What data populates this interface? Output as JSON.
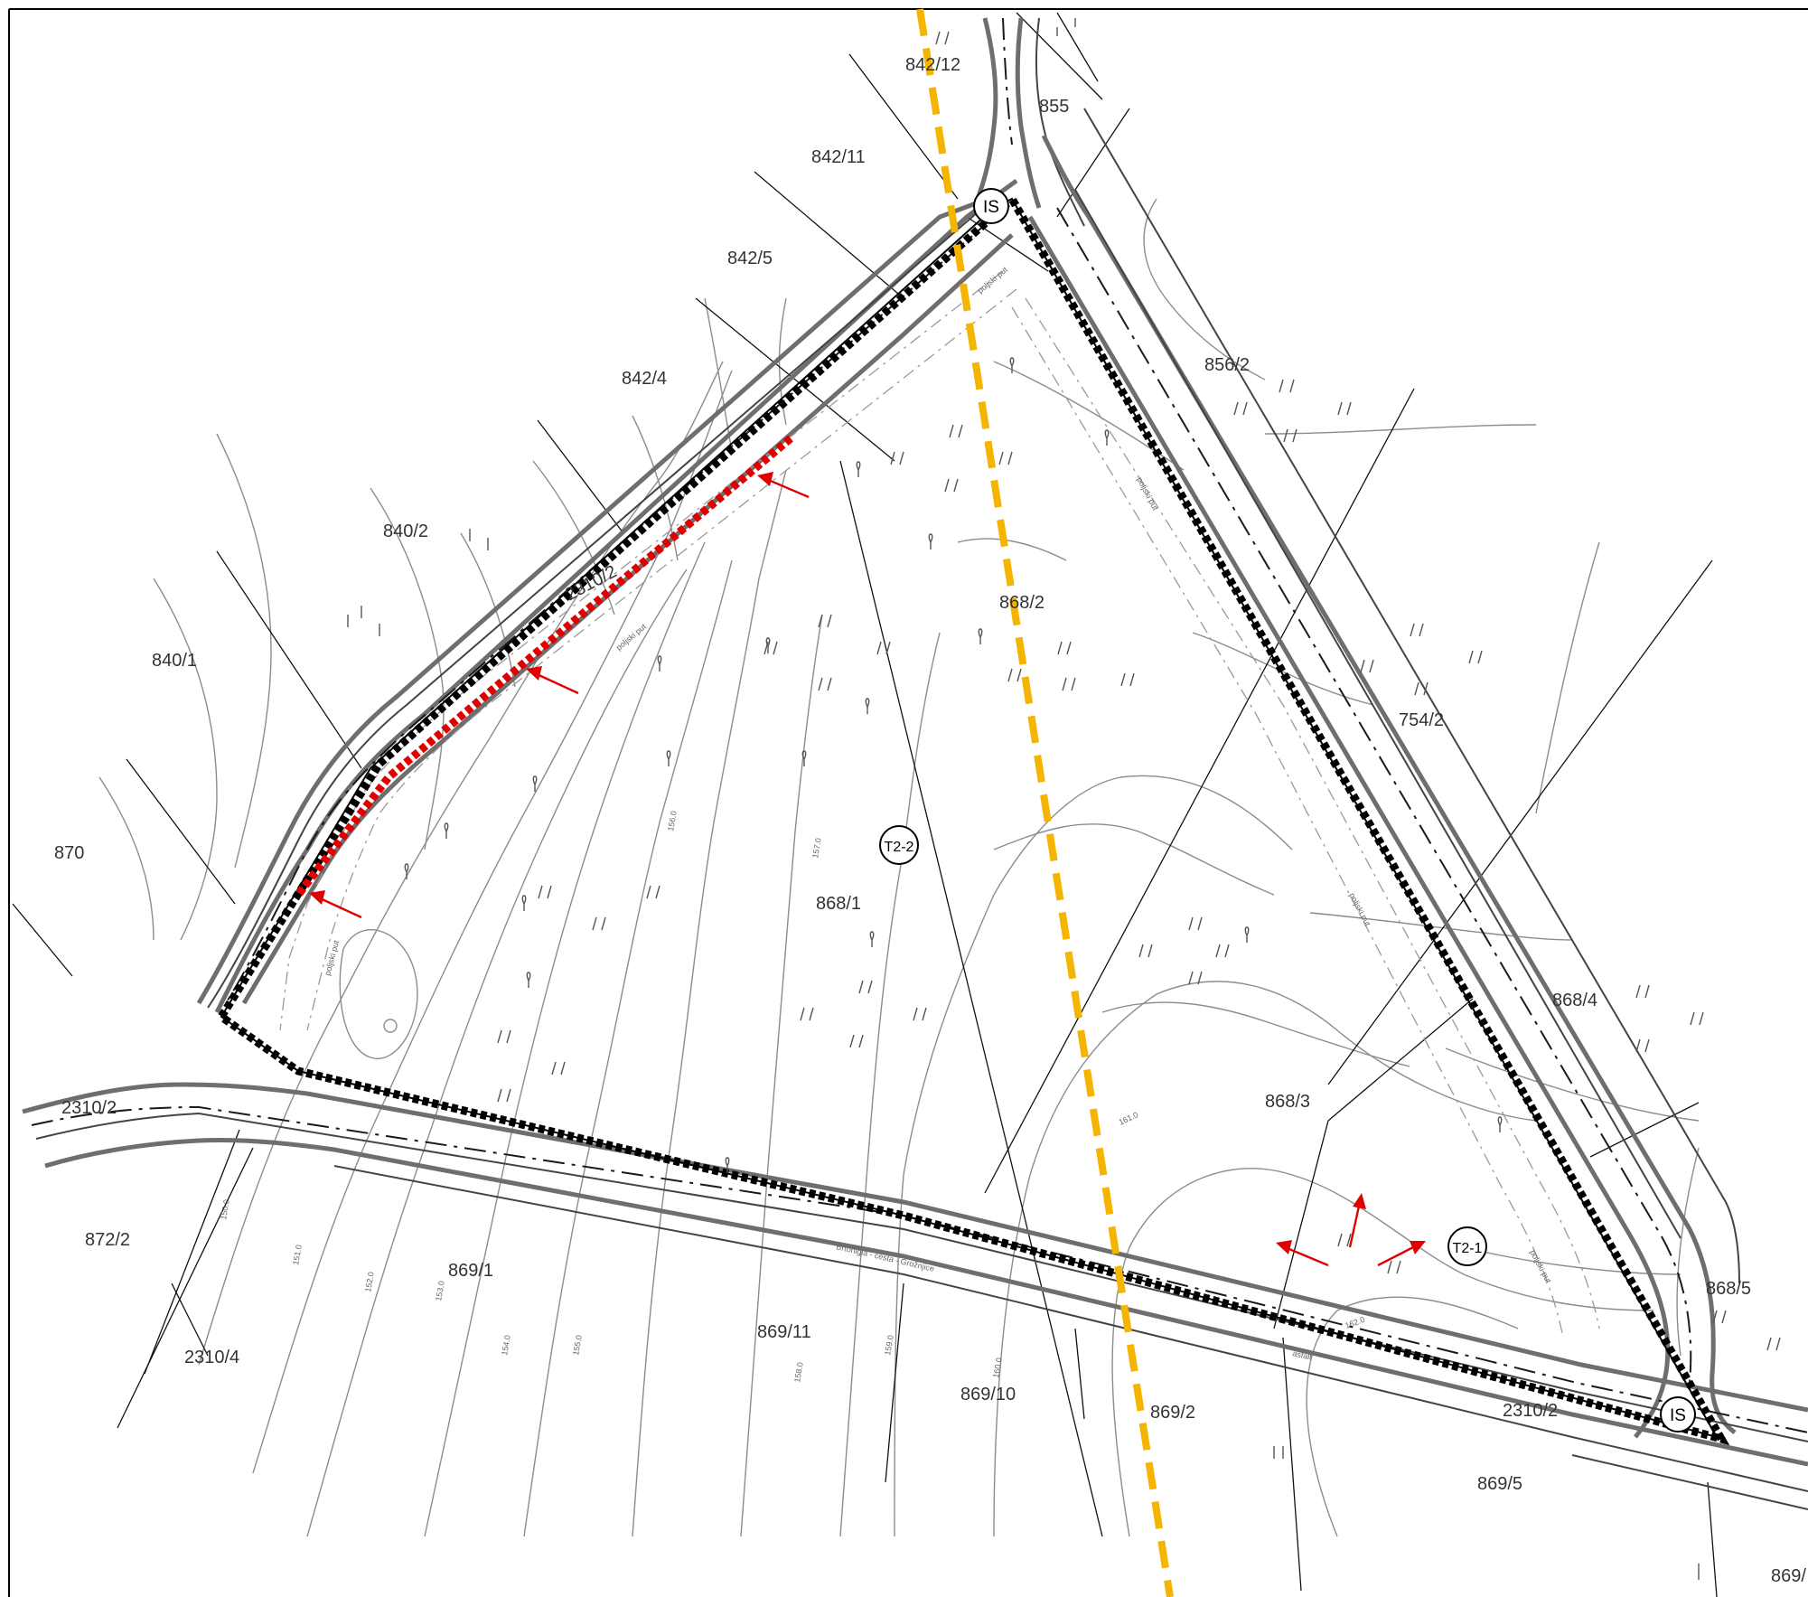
{
  "parcels": [
    "842/12",
    "855",
    "842/11",
    "842/5",
    "842/4",
    "856/2",
    "840/2",
    "2310/2",
    "868/2",
    "840/1",
    "754/2",
    "870",
    "868/1",
    "868/4",
    "2310/2",
    "868/3",
    "872/2",
    "869/1",
    "868/5",
    "869/11",
    "2310/4",
    "869/10",
    "869/2",
    "2310/2",
    "869/5",
    "869/"
  ],
  "markers": [
    "IS",
    "IS",
    "T2-2",
    "T2-1"
  ],
  "path_labels": [
    "poljski put",
    "poljski put",
    "poljski put",
    "poljski put",
    "poljski put",
    "poljski put",
    "Brtonigla - cesta - Grožnjice",
    "asfalt"
  ],
  "contour_labels": [
    "150.0",
    "151.0",
    "152.0",
    "153.0",
    "154.0",
    "155.0",
    "156.0",
    "157.0",
    "158.0",
    "159.0",
    "160.0",
    "161.0",
    "162.0"
  ],
  "colors": {
    "boundary": "#000000",
    "red_segment": "#e10000",
    "orange_line": "#f5b400",
    "road": "#6e6e6e",
    "contour": "#8c8c8c"
  }
}
